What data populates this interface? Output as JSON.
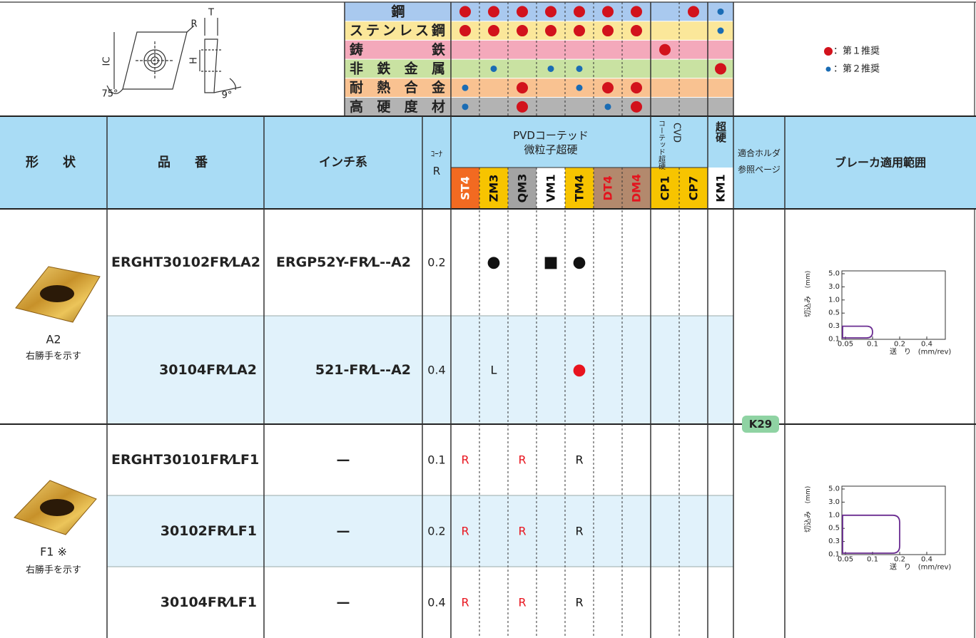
{
  "diagram": {
    "labels": [
      "R",
      "T",
      "IC",
      "H",
      "75°",
      "9°"
    ]
  },
  "legend": [
    {
      "rank": 1,
      "label": "：第１推奨",
      "color": "#d2121c"
    },
    {
      "rank": 2,
      "label": "：第２推奨",
      "color": "#1a6cb4"
    }
  ],
  "materials": [
    {
      "name": "鋼",
      "color": "#a9c9ef",
      "marks": [
        1,
        1,
        1,
        1,
        1,
        1,
        1,
        null,
        1,
        2
      ]
    },
    {
      "name": "ステンレス鋼",
      "color": "#fbe79a",
      "marks": [
        1,
        1,
        1,
        1,
        1,
        1,
        1,
        null,
        null,
        2
      ]
    },
    {
      "name": "鋳鉄",
      "color": "#f4a9bb",
      "marks": [
        null,
        null,
        null,
        null,
        null,
        null,
        null,
        1,
        null,
        null
      ]
    },
    {
      "name": "非鉄金属",
      "color": "#c9e2a2",
      "marks": [
        null,
        2,
        null,
        2,
        2,
        null,
        null,
        null,
        null,
        1
      ]
    },
    {
      "name": "耐熱合金",
      "color": "#f9c291",
      "marks": [
        2,
        null,
        1,
        null,
        2,
        1,
        1,
        null,
        null,
        null
      ]
    },
    {
      "name": "高硬度材",
      "color": "#b3b3b3",
      "marks": [
        2,
        null,
        1,
        null,
        null,
        2,
        1,
        null,
        null,
        null
      ]
    }
  ],
  "headers": {
    "shape": "形　状",
    "part": "品　番",
    "inch": "インチ系",
    "corner_top": "ｺｰﾅ",
    "corner_bottom": "R",
    "pvd_1": "PVDコーテッド",
    "pvd_2": "微粒子超硬",
    "cvd_1": "コーテッド超硬",
    "cvd_2": "CVD",
    "carbide": "超硬",
    "holder_1": "適合ホルダ",
    "holder_2": "参照ページ",
    "breaker": "ブレーカ適用範囲"
  },
  "grades": [
    {
      "name": "ST4",
      "bg": "#f26a21",
      "fg": "#ffffff"
    },
    {
      "name": "ZM3",
      "bg": "#f7c400",
      "fg": "#111111"
    },
    {
      "name": "QM3",
      "bg": "#a3a3a3",
      "fg": "#111111"
    },
    {
      "name": "VM1",
      "bg": "#ffffff",
      "fg": "#111111"
    },
    {
      "name": "TM4",
      "bg": "#f7c400",
      "fg": "#111111"
    },
    {
      "name": "DT4",
      "bg": "#b3896d",
      "fg": "#e3141e"
    },
    {
      "name": "DM4",
      "bg": "#b3896d",
      "fg": "#e3141e"
    },
    {
      "name": "CP1",
      "bg": "#f7c400",
      "fg": "#111111"
    },
    {
      "name": "CP7",
      "bg": "#f7c400",
      "fg": "#111111"
    },
    {
      "name": "KM1",
      "bg": "#ffffff",
      "fg": "#111111"
    }
  ],
  "shapes": [
    {
      "label": "A2",
      "note": "右勝手を示す"
    },
    {
      "label": "F1 ※",
      "note": "右勝手を示す"
    }
  ],
  "rows": [
    {
      "part": "ERGHT30102FR⁄LA2",
      "inch": "ERGP52Y-FR⁄L--A2",
      "corner": 0.2,
      "marks": [
        null,
        {
          "text": "●",
          "color": "#111111"
        },
        null,
        {
          "text": "■",
          "color": "#111111"
        },
        {
          "text": "●",
          "color": "#111111"
        },
        null,
        null,
        null,
        null,
        null
      ]
    },
    {
      "part": "30104FR⁄LA2",
      "inch": "521-FR⁄L--A2",
      "corner": 0.4,
      "marks": [
        null,
        {
          "text": "L",
          "color": "#111111"
        },
        null,
        null,
        {
          "text": "●",
          "color": "#e8141e"
        },
        null,
        null,
        null,
        null,
        null
      ]
    },
    {
      "part": "ERGHT30101FR⁄LF1",
      "inch": "—",
      "corner": 0.1,
      "marks": [
        {
          "text": "R",
          "color": "#e8141e"
        },
        null,
        {
          "text": "R",
          "color": "#e8141e"
        },
        null,
        {
          "text": "R",
          "color": "#111111"
        },
        null,
        null,
        null,
        null,
        null
      ]
    },
    {
      "part": "30102FR⁄LF1",
      "inch": "—",
      "corner": 0.2,
      "marks": [
        {
          "text": "R",
          "color": "#e8141e"
        },
        null,
        {
          "text": "R",
          "color": "#e8141e"
        },
        null,
        {
          "text": "R",
          "color": "#111111"
        },
        null,
        null,
        null,
        null,
        null
      ]
    },
    {
      "part": "30104FR⁄LF1",
      "inch": "—",
      "corner": 0.4,
      "marks": [
        {
          "text": "R",
          "color": "#e8141e"
        },
        null,
        {
          "text": "R",
          "color": "#e8141e"
        },
        null,
        {
          "text": "R",
          "color": "#111111"
        },
        null,
        null,
        null,
        null,
        null
      ]
    }
  ],
  "holder_page": "K29",
  "breaker_charts": [
    {
      "ylabel": "切込み",
      "yunit": "(mm)",
      "xlabel": "送　り",
      "xunit": "(mm/rev)",
      "color": "#6a2c91",
      "yticks": [
        {
          "value": 5,
          "label": "5.0"
        },
        {
          "value": 3,
          "label": "3.0"
        },
        {
          "value": 1,
          "label": "1.0"
        },
        0.5,
        0.3,
        0.1
      ],
      "xticks": [
        0.05,
        0.1,
        0.2,
        0.4
      ],
      "feed": [
        0.05,
        0.1
      ],
      "depth": [
        0.1,
        0.3
      ]
    },
    {
      "ylabel": "切込み",
      "yunit": "(mm)",
      "xlabel": "送　り",
      "xunit": "(mm/rev)",
      "color": "#6a2c91",
      "yticks": [
        {
          "value": 5,
          "label": "5.0"
        },
        {
          "value": 3,
          "label": "3.0"
        },
        {
          "value": 1,
          "label": "1.0"
        },
        0.5,
        0.3,
        0.1
      ],
      "xticks": [
        0.05,
        0.1,
        0.2,
        0.4
      ],
      "feed": [
        0.05,
        0.2
      ],
      "depth": [
        0.1,
        1.0
      ]
    }
  ]
}
